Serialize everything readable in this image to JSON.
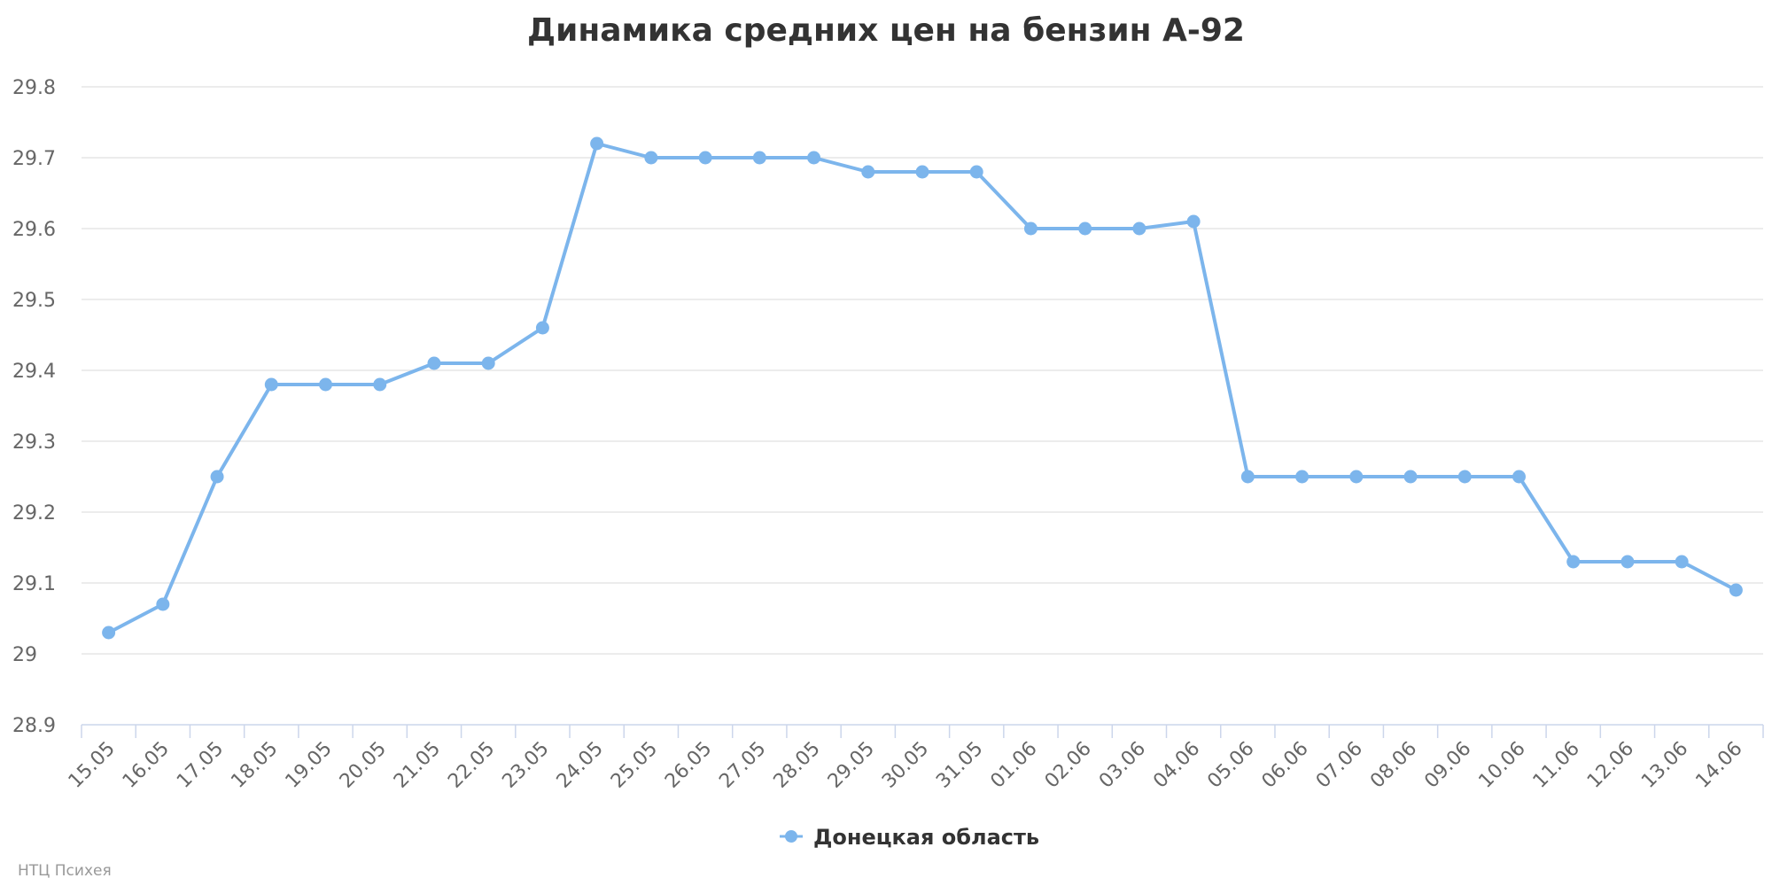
{
  "chart_data": {
    "type": "line",
    "title": "Динамика средних цен на бензин А-92",
    "xlabel": "",
    "ylabel": "",
    "ylim": [
      28.9,
      29.8
    ],
    "yticks": [
      "28.9",
      "29",
      "29.1",
      "29.2",
      "29.3",
      "29.4",
      "29.5",
      "29.6",
      "29.7",
      "29.8"
    ],
    "categories": [
      "15.05",
      "16.05",
      "17.05",
      "18.05",
      "19.05",
      "20.05",
      "21.05",
      "22.05",
      "23.05",
      "24.05",
      "25.05",
      "26.05",
      "27.05",
      "28.05",
      "29.05",
      "30.05",
      "31.05",
      "01.06",
      "02.06",
      "03.06",
      "04.06",
      "05.06",
      "06.06",
      "07.06",
      "08.06",
      "09.06",
      "10.06",
      "11.06",
      "12.06",
      "13.06",
      "14.06"
    ],
    "series": [
      {
        "name": "Донецкая область",
        "color": "#7cb5ec",
        "values": [
          29.03,
          29.07,
          29.25,
          29.38,
          29.38,
          29.38,
          29.41,
          29.41,
          29.46,
          29.72,
          29.7,
          29.7,
          29.7,
          29.7,
          29.68,
          29.68,
          29.68,
          29.6,
          29.6,
          29.6,
          29.61,
          29.25,
          29.25,
          29.25,
          29.25,
          29.25,
          29.25,
          29.13,
          29.13,
          29.13,
          29.09
        ]
      }
    ],
    "grid": true,
    "legend": "bottom-center",
    "credits": "НТЦ Психея"
  }
}
